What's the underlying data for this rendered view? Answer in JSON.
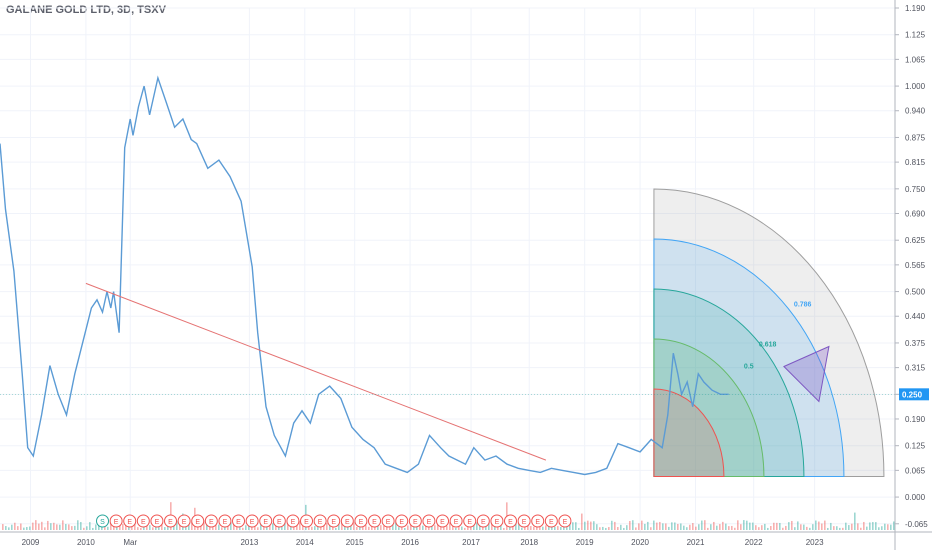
{
  "header": {
    "title": "GALANE GOLD LTD, 3D, TSXV"
  },
  "chart_data": {
    "type": "line",
    "title": "GALANE GOLD LTD, 3D, TSXV",
    "y_axis": {
      "ticks": [
        "1.190",
        "1.125",
        "1.065",
        "1.000",
        "0.940",
        "0.875",
        "0.815",
        "0.750",
        "0.690",
        "0.625",
        "0.565",
        "0.500",
        "0.440",
        "0.375",
        "0.315",
        "0.250",
        "0.190",
        "0.125",
        "0.065",
        "0.000",
        "-0.065"
      ],
      "range": [
        -0.085,
        1.19
      ],
      "position": "right"
    },
    "x_axis": {
      "ticks": [
        "2009",
        "2010",
        "Mar",
        "2013",
        "2014",
        "2015",
        "2016",
        "2017",
        "2018",
        "2019",
        "2020",
        "2021",
        "2022",
        "2023"
      ],
      "range": [
        2008.45,
        2024.6
      ]
    },
    "last_price": {
      "label": "0.250",
      "value": 0.25,
      "color": "#2196f3"
    },
    "series": [
      {
        "role": "price",
        "color": "#5b9bd5",
        "x": [
          2008.45,
          2008.55,
          2008.7,
          2008.85,
          2008.95,
          2009.05,
          2009.2,
          2009.35,
          2009.5,
          2009.65,
          2009.8,
          2009.95,
          2010.1,
          2010.2,
          2010.3,
          2010.38,
          2010.45,
          2010.5,
          2010.6,
          2010.7,
          2010.8,
          2010.85,
          2010.95,
          2011.05,
          2011.15,
          2011.3,
          2011.45,
          2011.6,
          2011.75,
          2011.9,
          2012.0,
          2012.2,
          2012.4,
          2012.6,
          2012.8,
          2013.0,
          2013.1,
          2013.25,
          2013.4,
          2013.6,
          2013.75,
          2013.9,
          2014.05,
          2014.2,
          2014.4,
          2014.6,
          2014.8,
          2015.0,
          2015.2,
          2015.4,
          2015.6,
          2015.8,
          2016.0,
          2016.2,
          2016.4,
          2016.55,
          2016.7,
          2016.85,
          2017.0,
          2017.2,
          2017.4,
          2017.6,
          2017.8,
          2018.0,
          2018.2,
          2018.4,
          2018.6,
          2018.8,
          2019.0,
          2019.2,
          2019.4,
          2019.6,
          2019.8,
          2020.0,
          2020.2,
          2020.4,
          2020.5,
          2020.6,
          2020.68,
          2020.75,
          2020.85,
          2020.95,
          2021.05,
          2021.15,
          2021.3,
          2021.45,
          2021.6
        ],
        "y": [
          0.86,
          0.7,
          0.55,
          0.3,
          0.12,
          0.1,
          0.2,
          0.32,
          0.25,
          0.2,
          0.3,
          0.38,
          0.46,
          0.48,
          0.45,
          0.5,
          0.46,
          0.5,
          0.4,
          0.85,
          0.92,
          0.88,
          0.95,
          1.0,
          0.93,
          1.02,
          0.96,
          0.9,
          0.92,
          0.87,
          0.86,
          0.8,
          0.82,
          0.78,
          0.72,
          0.56,
          0.4,
          0.22,
          0.15,
          0.1,
          0.18,
          0.21,
          0.18,
          0.25,
          0.27,
          0.24,
          0.17,
          0.14,
          0.12,
          0.08,
          0.07,
          0.06,
          0.08,
          0.15,
          0.12,
          0.1,
          0.09,
          0.08,
          0.12,
          0.09,
          0.1,
          0.08,
          0.07,
          0.065,
          0.06,
          0.07,
          0.065,
          0.06,
          0.055,
          0.06,
          0.07,
          0.13,
          0.12,
          0.11,
          0.14,
          0.12,
          0.2,
          0.35,
          0.3,
          0.25,
          0.28,
          0.22,
          0.3,
          0.28,
          0.26,
          0.25,
          0.25
        ]
      },
      {
        "role": "trendline",
        "color": "#e57373",
        "x": [
          2010.0,
          2018.3
        ],
        "y": [
          0.52,
          0.09
        ]
      }
    ],
    "gann_fan": {
      "levels": [
        "0.5",
        "0.618",
        "0.786"
      ],
      "colors": [
        "#ef5350",
        "#66bb6a",
        "#26a69a",
        "#42a5f5",
        "#9e9e9e"
      ]
    },
    "volume_bars": true,
    "event_markers": [
      "S",
      "E",
      "E",
      "E",
      "E",
      "E",
      "E",
      "E",
      "E",
      "E",
      "E",
      "E",
      "E",
      "E",
      "E",
      "E",
      "E",
      "E",
      "E",
      "E",
      "E",
      "E",
      "E",
      "E",
      "E",
      "E",
      "E",
      "E",
      "E",
      "E",
      "E",
      "E",
      "E",
      "E",
      "E"
    ]
  }
}
